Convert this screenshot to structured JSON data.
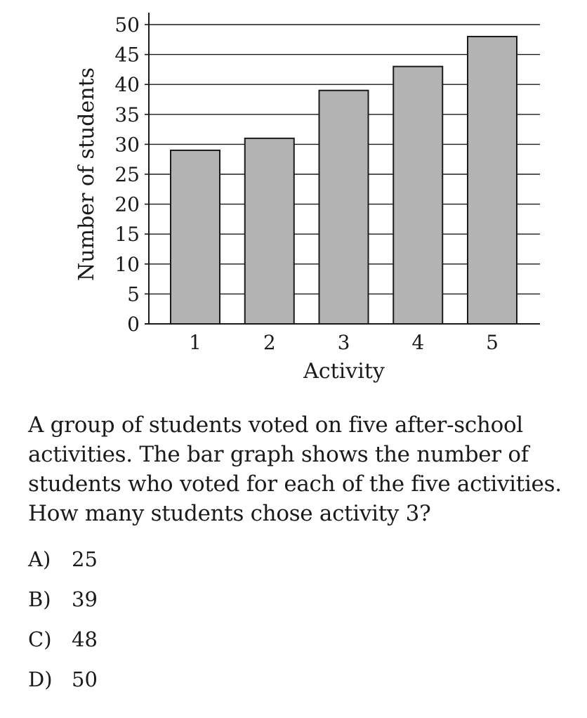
{
  "chart_data": {
    "type": "bar",
    "title": "",
    "xlabel": "Activity",
    "ylabel": "Number of students",
    "categories": [
      "1",
      "2",
      "3",
      "4",
      "5"
    ],
    "values": [
      29,
      31,
      39,
      43,
      48
    ],
    "ylim": [
      0,
      50
    ],
    "yticks": [
      "0",
      "5",
      "10",
      "15",
      "20",
      "25",
      "30",
      "35",
      "40",
      "45",
      "50"
    ],
    "grid": "horizontal",
    "bar_color": "#b3b3b3",
    "edge_color": "#1a1a1a"
  },
  "question": {
    "lines": [
      "A group of students voted on five after-school",
      "activities. The bar graph shows the number of",
      "students who voted for each of the five activities.",
      "How many students chose activity 3?"
    ]
  },
  "choices": [
    {
      "letter": "A)",
      "value": "25"
    },
    {
      "letter": "B)",
      "value": "39"
    },
    {
      "letter": "C)",
      "value": "48"
    },
    {
      "letter": "D)",
      "value": "50"
    }
  ]
}
